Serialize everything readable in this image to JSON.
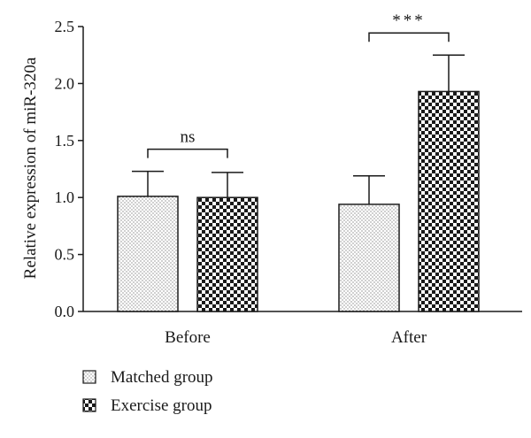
{
  "chart_data": {
    "type": "bar",
    "title": "",
    "xlabel": "",
    "ylabel": "Relative expression of miR-320a",
    "ylim": [
      0,
      2.5
    ],
    "y_ticks": [
      "0.0",
      "0.5",
      "1.0",
      "1.5",
      "2.0",
      "2.5"
    ],
    "categories": [
      "Before",
      "After"
    ],
    "series": [
      {
        "name": "Matched group",
        "values": [
          1.01,
          0.94
        ],
        "error": [
          0.22,
          0.25
        ],
        "pattern": "dots"
      },
      {
        "name": "Exercise group",
        "values": [
          1.0,
          1.93
        ],
        "error": [
          0.22,
          0.32
        ],
        "pattern": "checker"
      }
    ],
    "annotations": [
      {
        "category": "Before",
        "label": "ns"
      },
      {
        "category": "After",
        "label": "***"
      }
    ],
    "legend_position": "bottom-left",
    "grid": false
  },
  "colors": {
    "ink": "#1a1a1a",
    "bar_fill": "#ffffff"
  }
}
